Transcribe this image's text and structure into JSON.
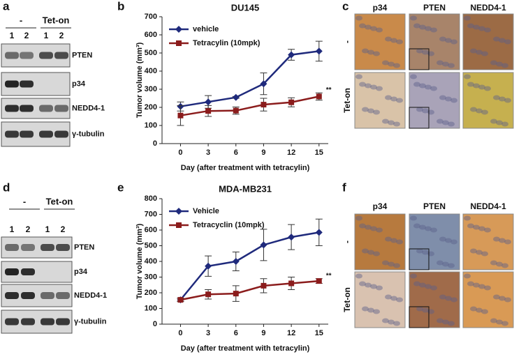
{
  "panels": [
    "a",
    "b",
    "c",
    "d",
    "e",
    "f"
  ],
  "blots": [
    {
      "groups": [
        "-",
        "Tet-on"
      ],
      "lanes": [
        "1",
        "2",
        "1",
        "2"
      ],
      "proteins": [
        "PTEN",
        "p34",
        "NEDD4-1",
        "γ-tubulin"
      ]
    },
    {
      "groups": [
        "-",
        "Tet-on"
      ],
      "lanes": [
        "1",
        "2",
        "1",
        "2"
      ],
      "proteins": [
        "PTEN",
        "p34",
        "NEDD4-1",
        "γ-tubulin"
      ]
    }
  ],
  "ihc": [
    {
      "columns": [
        "p34",
        "PTEN",
        "NEDD4-1"
      ],
      "rows": [
        "-",
        "Tet-on"
      ]
    },
    {
      "columns": [
        "p34",
        "PTEN",
        "NEDD4-1"
      ],
      "rows": [
        "-",
        "Tet-on"
      ]
    }
  ],
  "chart_data": [
    {
      "type": "line",
      "title": "DU145",
      "x_label": "Day (after treatment with tetracylin)",
      "y_label": "Tumor volume (mm³)",
      "x": [
        0,
        3,
        6,
        9,
        12,
        15
      ],
      "xlim": [
        -2,
        16
      ],
      "xticks": [
        0,
        3,
        6,
        9,
        12,
        15
      ],
      "ylim": [
        0,
        700
      ],
      "yticks": [
        0,
        100,
        200,
        300,
        400,
        500,
        600,
        700
      ],
      "legend": "upper left",
      "annotation": "**",
      "series": [
        {
          "name": "vehicle",
          "color": "#1f2a7c",
          "marker": "diamond",
          "values": [
            205,
            230,
            255,
            330,
            490,
            510
          ],
          "errors": [
            25,
            35,
            5,
            60,
            30,
            55
          ]
        },
        {
          "name": "Tetracylin (10mpk)",
          "color": "#8b1c1c",
          "marker": "square",
          "values": [
            155,
            180,
            182,
            215,
            228,
            260
          ],
          "errors": [
            55,
            30,
            20,
            35,
            25,
            20
          ]
        }
      ]
    },
    {
      "type": "line",
      "title": "MDA-MB231",
      "x_label": "Day (after treatment with tetracylin)",
      "y_label": "Tumor volume (mm³)",
      "x": [
        0,
        3,
        6,
        9,
        12,
        15
      ],
      "xlim": [
        -2,
        16
      ],
      "xticks": [
        0,
        3,
        6,
        9,
        12,
        15
      ],
      "ylim": [
        0,
        800
      ],
      "yticks": [
        0,
        100,
        200,
        300,
        400,
        500,
        600,
        700,
        800
      ],
      "legend": "upper left",
      "annotation": "**",
      "series": [
        {
          "name": "Vehicle",
          "color": "#1f2a7c",
          "marker": "diamond",
          "values": [
            155,
            370,
            400,
            505,
            555,
            585
          ],
          "errors": [
            10,
            65,
            60,
            100,
            80,
            85
          ]
        },
        {
          "name": "Tetracyclin (10mpk)",
          "color": "#8b1c1c",
          "marker": "square",
          "values": [
            155,
            190,
            195,
            245,
            260,
            275
          ],
          "errors": [
            10,
            30,
            50,
            45,
            40,
            15
          ]
        }
      ]
    }
  ]
}
